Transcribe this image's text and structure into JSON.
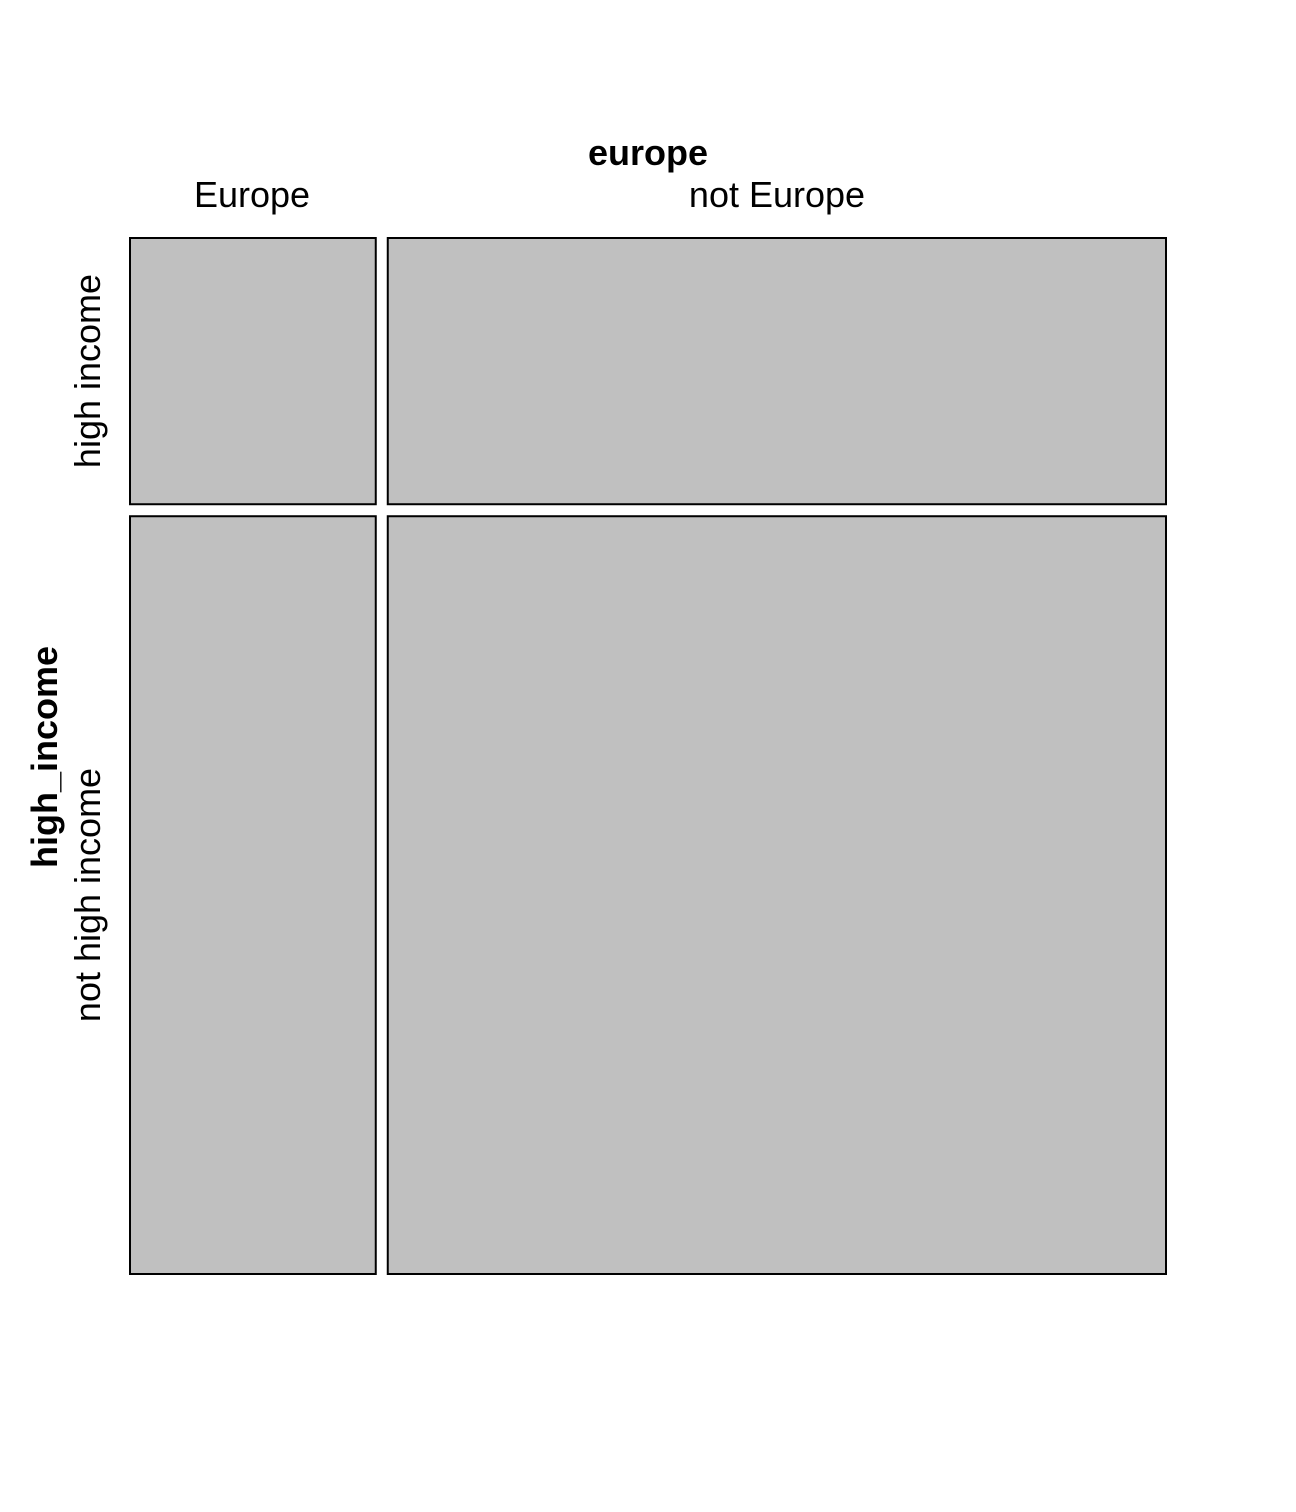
{
  "chart_data": {
    "type": "mosaic",
    "x_variable": "europe",
    "y_variable": "high_income",
    "x_categories": [
      "Europe",
      "not Europe"
    ],
    "y_categories": [
      "high income",
      "not high income"
    ],
    "x_proportions": [
      0.24,
      0.76
    ],
    "y_proportions_within_x": [
      [
        0.26,
        0.74
      ],
      [
        0.26,
        0.74
      ]
    ],
    "tile_color": "#c0c0c0",
    "border_color": "#000000"
  }
}
